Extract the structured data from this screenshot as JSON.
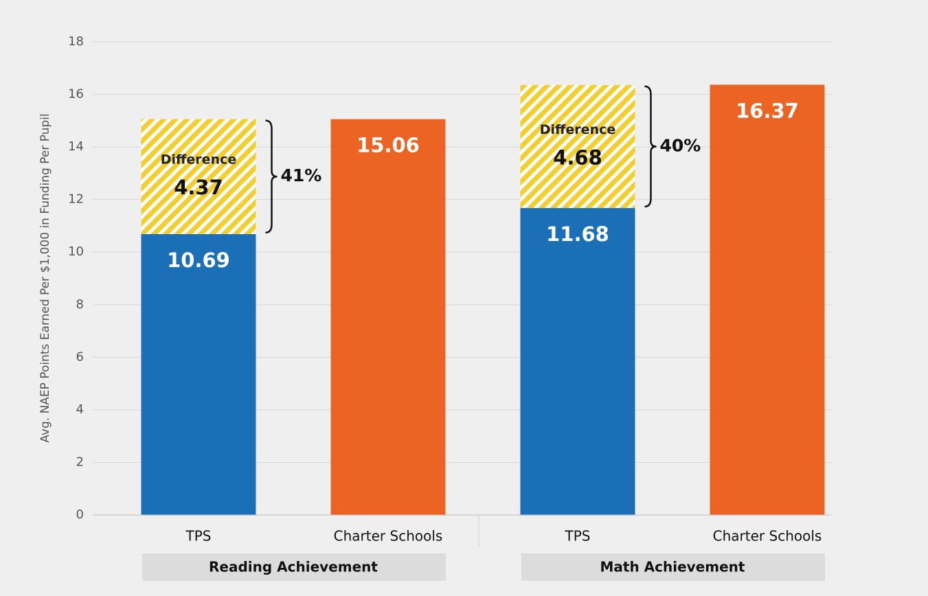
{
  "chart_data": {
    "type": "stacked_bar",
    "ylabel": "Avg. NAEP Points Earned Per $1,000 in Funding Per Pupil",
    "categories": [
      "TPS",
      "Charter Schools",
      "TPS",
      "Charter Schools"
    ],
    "groups": [
      "Reading Achievement",
      "Math Achievement"
    ],
    "series": [
      {
        "color": "#1b6fb7",
        "values": [
          10.69,
          null,
          11.68,
          null
        ]
      },
      {
        "name": "Difference",
        "color": "#f2cf2f",
        "values": [
          4.37,
          null,
          4.68,
          null
        ]
      },
      {
        "color": "#ec6424",
        "values": [
          null,
          15.06,
          null,
          16.37
        ]
      }
    ],
    "annotations": [
      "41%",
      "40%"
    ],
    "ylim": [
      0,
      18
    ],
    "yticks": [
      0,
      2,
      4,
      6,
      8,
      10,
      12,
      14,
      16,
      18
    ],
    "grid": true
  }
}
